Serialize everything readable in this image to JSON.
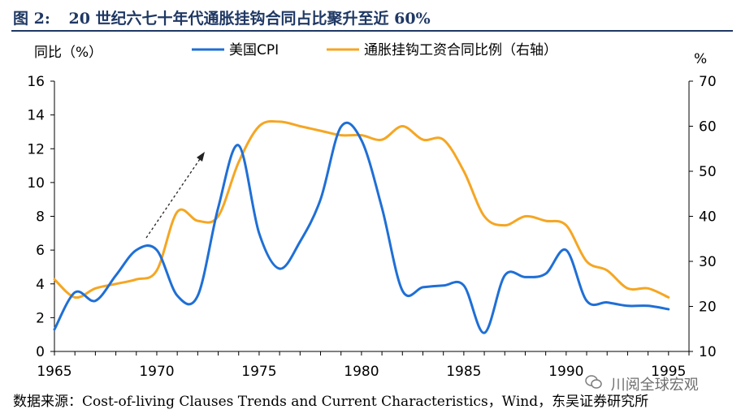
{
  "figure": {
    "label": "图 2:",
    "title": "20 世纪六七十年代通胀挂钩合同占比聚升至近 60%"
  },
  "source": "数据来源：Cost-of-living Clauses Trends and Current Characteristics，Wind，东吴证券研究所",
  "watermark": {
    "text": "川阅全球宏观",
    "icon": "wechat-icon"
  },
  "chart_data": {
    "type": "line",
    "ylabel_left": "同比（%）",
    "ylabel_right": "%",
    "xlim": [
      1965,
      1996
    ],
    "ylim_left": [
      0,
      16
    ],
    "ylim_right": [
      10,
      70
    ],
    "x_ticks": [
      1965,
      1970,
      1975,
      1980,
      1985,
      1990,
      1995
    ],
    "y_ticks_left": [
      0,
      2,
      4,
      6,
      8,
      10,
      12,
      14,
      16
    ],
    "y_ticks_right": [
      10,
      20,
      30,
      40,
      50,
      60,
      70
    ],
    "legend_position": "top-center",
    "grid": false,
    "series": [
      {
        "name": "美国CPI",
        "axis": "left",
        "color": "#1f6fd6",
        "x": [
          1965,
          1966,
          1967,
          1968,
          1969,
          1970,
          1971,
          1972,
          1973,
          1974,
          1975,
          1976,
          1977,
          1978,
          1979,
          1980,
          1981,
          1982,
          1983,
          1984,
          1985,
          1986,
          1987,
          1988,
          1989,
          1990,
          1991,
          1992,
          1993,
          1994,
          1995
        ],
        "values": [
          1.3,
          3.5,
          3.0,
          4.5,
          6.0,
          6.0,
          3.3,
          3.3,
          8.5,
          12.2,
          7.0,
          4.9,
          6.5,
          9.0,
          13.3,
          12.5,
          8.5,
          3.6,
          3.8,
          3.9,
          3.9,
          1.1,
          4.5,
          4.4,
          4.6,
          6.0,
          3.0,
          2.9,
          2.7,
          2.7,
          2.5
        ]
      },
      {
        "name": "通胀挂钩工资合同比例（右轴）",
        "axis": "right",
        "color": "#f5a623",
        "x": [
          1965,
          1966,
          1967,
          1968,
          1969,
          1970,
          1971,
          1972,
          1973,
          1974,
          1975,
          1976,
          1977,
          1978,
          1979,
          1980,
          1981,
          1982,
          1983,
          1984,
          1985,
          1986,
          1987,
          1988,
          1989,
          1990,
          1991,
          1992,
          1993,
          1994,
          1995
        ],
        "values": [
          26,
          22,
          24,
          25,
          26,
          28,
          41,
          39,
          40,
          52,
          60,
          61,
          60,
          59,
          58,
          58,
          57,
          60,
          57,
          57,
          50,
          40,
          38,
          40,
          39,
          38,
          30,
          28,
          24,
          24,
          22
        ]
      }
    ]
  }
}
